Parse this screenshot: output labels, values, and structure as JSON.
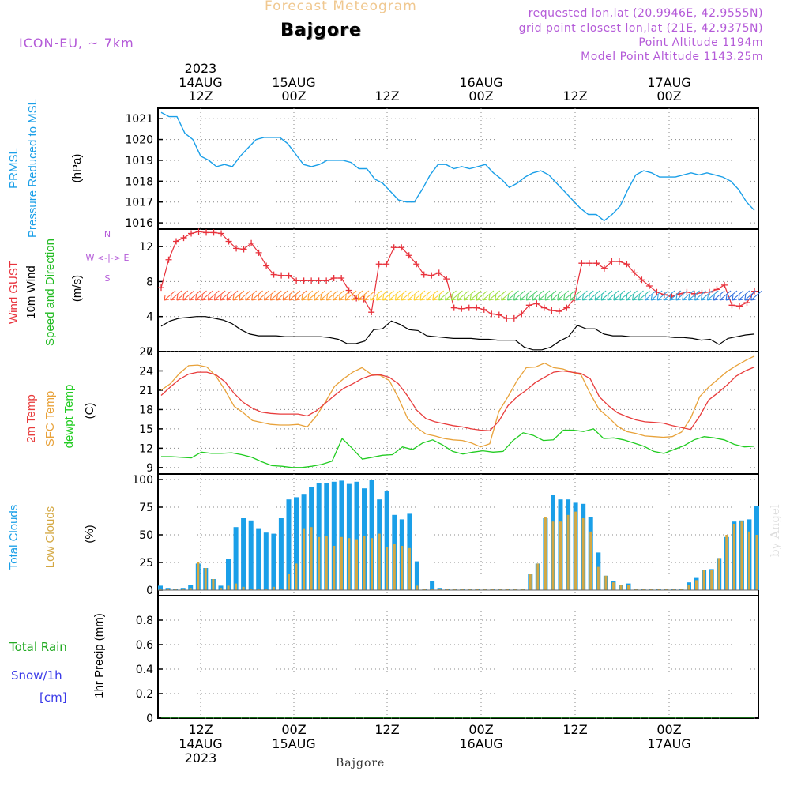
{
  "header": {
    "product_title": "Forecast Meteogram",
    "location": "Bajgore",
    "model": "ICON-EU, ~ 7km",
    "requested_coords": "requested lon,lat (20.9946E, 42.9555N)",
    "grid_coords": "grid point closest lon,lat (21E, 42.9375N)",
    "point_altitude": "Point Altitude 1194m",
    "model_altitude": "Model Point Altitude 1143.25m",
    "footer_location": "Bajgore",
    "watermark": "by Angel"
  },
  "colors": {
    "pressure": "#1a9fe8",
    "gust": "#e8323c",
    "wind": "#000000",
    "wind_label": "#22bb22",
    "temp": "#e83c3c",
    "sfc_temp": "#e8a23a",
    "dewpoint": "#22cc22",
    "total_clouds": "#1a9fe8",
    "low_clouds": "#d4a843",
    "rain": "#22aa22",
    "snow": "#3a3ae8",
    "meta": "#b45ad8",
    "title_faded": "#f0c890"
  },
  "chart_data": [
    {
      "type": "line",
      "panel": "pressure",
      "ylabel_lines": [
        "PRMSL",
        "Pressure Reduced to MSL"
      ],
      "unit": "(hPa)",
      "ylim": [
        1015.7,
        1021.5
      ],
      "yticks": [
        1016,
        1017,
        1018,
        1019,
        1020,
        1021
      ],
      "series": [
        {
          "values": [
            1021.3,
            1021.1,
            1021.1,
            1020.3,
            1020.0,
            1019.2,
            1019.0,
            1018.7,
            1018.8,
            1018.7,
            1019.2,
            1019.6,
            1020.0,
            1020.1,
            1020.1,
            1020.1,
            1019.8,
            1019.3,
            1018.8,
            1018.7,
            1018.8,
            1019.0,
            1019.0,
            1019.0,
            1018.9,
            1018.6,
            1018.6,
            1018.1,
            1017.9,
            1017.5,
            1017.1,
            1017.0,
            1017.0,
            1017.6,
            1018.3,
            1018.8,
            1018.8,
            1018.6,
            1018.7,
            1018.6,
            1018.7,
            1018.8,
            1018.4,
            1018.1,
            1017.7,
            1017.9,
            1018.2,
            1018.4,
            1018.5,
            1018.3,
            1017.9,
            1017.5,
            1017.1,
            1016.7,
            1016.4,
            1016.4,
            1016.1,
            1016.4,
            1016.8,
            1017.6,
            1018.3,
            1018.5,
            1018.4,
            1018.2,
            1018.2,
            1018.2,
            1018.3,
            1018.4,
            1018.3,
            1018.4,
            1018.3,
            1018.2,
            1018.0,
            1017.6,
            1017.0,
            1016.6
          ]
        }
      ]
    },
    {
      "type": "line",
      "panel": "wind",
      "ylabel_lines": [
        "Wind GUST",
        "10m Wind",
        "Speed and Direction"
      ],
      "unit": "(m/s)",
      "compass": [
        "N",
        "W <-|-> E",
        "S"
      ],
      "ylim": [
        0,
        14
      ],
      "yticks": [
        0,
        4,
        8,
        12
      ],
      "series": [
        {
          "name": "Wind GUST",
          "values": [
            7.3,
            10.5,
            12.6,
            13.0,
            13.5,
            13.7,
            13.6,
            13.6,
            13.5,
            12.6,
            11.8,
            11.7,
            12.4,
            11.3,
            9.8,
            8.8,
            8.7,
            8.7,
            8.1,
            8.1,
            8.1,
            8.1,
            8.1,
            8.4,
            8.4,
            7.0,
            6.1,
            6.0,
            4.5,
            10.0,
            10.0,
            11.9,
            11.9,
            11.0,
            10.0,
            8.8,
            8.7,
            9.0,
            8.3,
            5.0,
            4.9,
            5.0,
            5.0,
            4.8,
            4.3,
            4.2,
            3.8,
            3.8,
            4.3,
            5.3,
            5.5,
            5.0,
            4.7,
            4.6,
            5.0,
            6.0,
            10.1,
            10.1,
            10.1,
            9.5,
            10.3,
            10.3,
            10.0,
            9.0,
            8.2,
            7.5,
            6.8,
            6.5,
            6.3,
            6.6,
            6.8,
            6.6,
            6.7,
            6.8,
            7.1,
            7.6,
            5.3,
            5.2,
            5.6,
            6.9
          ]
        },
        {
          "name": "10m Wind",
          "values": [
            2.9,
            3.5,
            3.8,
            3.9,
            4.0,
            4.0,
            3.8,
            3.6,
            3.2,
            2.5,
            2.0,
            1.8,
            1.8,
            1.8,
            1.7,
            1.7,
            1.7,
            1.7,
            1.7,
            1.6,
            1.4,
            0.9,
            0.9,
            1.2,
            2.5,
            2.6,
            3.5,
            3.1,
            2.5,
            2.4,
            1.8,
            1.7,
            1.6,
            1.5,
            1.5,
            1.5,
            1.4,
            1.4,
            1.3,
            1.3,
            1.3,
            0.5,
            0.2,
            0.2,
            0.5,
            1.2,
            1.7,
            3.0,
            2.6,
            2.6,
            2.0,
            1.8,
            1.8,
            1.7,
            1.7,
            1.7,
            1.7,
            1.7,
            1.6,
            1.6,
            1.5,
            1.3,
            1.4,
            0.8,
            1.5,
            1.7,
            1.9,
            2.0
          ]
        }
      ]
    },
    {
      "type": "line",
      "panel": "temperature",
      "ylabel_lines": [
        "2m Temp",
        "SFC Temp",
        "dewpt Temp"
      ],
      "unit": "(C)",
      "ylim": [
        8,
        27
      ],
      "yticks": [
        9,
        12,
        15,
        18,
        21,
        24,
        27
      ],
      "series": [
        {
          "name": "2m Temp",
          "values": [
            20.2,
            21.5,
            22.7,
            23.5,
            23.8,
            23.8,
            23.4,
            22.3,
            20.5,
            19.1,
            18.2,
            17.6,
            17.4,
            17.3,
            17.3,
            17.3,
            17.0,
            17.8,
            19.0,
            20.2,
            21.3,
            22.0,
            22.8,
            23.3,
            23.4,
            23.0,
            22.0,
            20.1,
            17.9,
            16.6,
            16.1,
            15.8,
            15.5,
            15.3,
            15.0,
            14.8,
            14.7,
            16.2,
            18.6,
            20.0,
            21.0,
            22.2,
            23.0,
            23.8,
            24.0,
            23.8,
            23.6,
            22.8,
            20.0,
            18.6,
            17.5,
            16.9,
            16.4,
            16.1,
            16.0,
            15.9,
            15.5,
            15.2,
            14.9,
            17.0,
            19.5,
            20.6,
            21.8,
            23.2,
            24.0,
            24.6
          ]
        },
        {
          "name": "SFC Temp",
          "values": [
            21.0,
            22.0,
            23.6,
            24.8,
            24.9,
            24.6,
            23.2,
            21.0,
            18.5,
            17.5,
            16.3,
            16.0,
            15.7,
            15.6,
            15.6,
            15.7,
            15.3,
            17.0,
            19.2,
            21.6,
            22.8,
            23.8,
            24.5,
            23.5,
            23.3,
            22.5,
            19.8,
            16.6,
            15.2,
            14.2,
            13.9,
            13.5,
            13.3,
            13.2,
            12.8,
            12.2,
            12.7,
            17.7,
            20.0,
            22.5,
            24.5,
            24.6,
            25.2,
            24.5,
            24.3,
            23.8,
            23.4,
            20.5,
            18.0,
            16.8,
            15.4,
            14.6,
            14.3,
            13.9,
            13.8,
            13.7,
            13.8,
            14.5,
            16.6,
            20.0,
            21.5,
            22.7,
            23.9,
            24.8,
            25.6,
            26.3
          ]
        },
        {
          "name": "dewpt Temp",
          "values": [
            10.7,
            10.7,
            10.6,
            10.5,
            11.4,
            11.2,
            11.2,
            11.3,
            11.0,
            10.6,
            9.9,
            9.3,
            9.2,
            9.0,
            9.0,
            9.2,
            9.5,
            10.0,
            13.5,
            12.0,
            10.3,
            10.6,
            10.9,
            11.0,
            12.2,
            11.8,
            12.8,
            13.3,
            12.5,
            11.5,
            11.1,
            11.4,
            11.6,
            11.4,
            11.5,
            13.2,
            14.4,
            14.0,
            13.2,
            13.3,
            14.8,
            14.8,
            14.6,
            15.0,
            13.5,
            13.6,
            13.3,
            12.8,
            12.3,
            11.5,
            11.2,
            11.8,
            12.4,
            13.3,
            13.8,
            13.6,
            13.3,
            12.6,
            12.2,
            12.3
          ]
        }
      ]
    },
    {
      "type": "bar",
      "panel": "clouds",
      "ylabel_lines": [
        "Total Clouds",
        "Low Clouds"
      ],
      "unit": "(%)",
      "ylim": [
        -5,
        105
      ],
      "yticks": [
        0,
        25,
        50,
        75,
        100
      ],
      "series": [
        {
          "name": "Total Clouds",
          "values": [
            4,
            2,
            1,
            2,
            5,
            24,
            20,
            10,
            4,
            28,
            57,
            65,
            63,
            56,
            52,
            51,
            65,
            82,
            84,
            87,
            93,
            97,
            97,
            98,
            99,
            96,
            98,
            92,
            100,
            82,
            90,
            68,
            64,
            69,
            26,
            1,
            8,
            2,
            1,
            0,
            0,
            0,
            0,
            0,
            0,
            0,
            0,
            0,
            0,
            15,
            24,
            65,
            86,
            82,
            82,
            79,
            78,
            66,
            34,
            13,
            8,
            5,
            6,
            1,
            0,
            0,
            0,
            0,
            0,
            1,
            7,
            11,
            18,
            19,
            29,
            48,
            62,
            63,
            64,
            76
          ]
        },
        {
          "name": "Low Clouds",
          "values": [
            1,
            1,
            1,
            1,
            2,
            25,
            20,
            10,
            2,
            4,
            6,
            3,
            1,
            1,
            1,
            3,
            1,
            15,
            24,
            56,
            57,
            48,
            49,
            40,
            48,
            47,
            46,
            49,
            47,
            51,
            39,
            42,
            40,
            38,
            4,
            1,
            0,
            0,
            0,
            0,
            0,
            0,
            0,
            0,
            0,
            0,
            0,
            0,
            0,
            15,
            24,
            66,
            62,
            62,
            68,
            71,
            65,
            53,
            21,
            13,
            7,
            5,
            5,
            0,
            0,
            0,
            0,
            0,
            0,
            0,
            5,
            9,
            18,
            18,
            29,
            50,
            60,
            62,
            53,
            50
          ]
        }
      ]
    },
    {
      "type": "line",
      "panel": "precipitation",
      "left_labels": [
        "Total Rain",
        "Snow/1h",
        "[cm]"
      ],
      "ylabel": "1hr Precip (mm)",
      "ylim": [
        0,
        1.0
      ],
      "yticks": [
        "0",
        "0.2",
        "0.4",
        "0.6",
        "0.8"
      ],
      "series": [
        {
          "name": "Total Rain",
          "values": [
            0,
            0,
            0,
            0,
            0,
            0,
            0,
            0,
            0,
            0,
            0,
            0,
            0,
            0,
            0,
            0,
            0,
            0,
            0,
            0,
            0,
            0,
            0,
            0,
            0,
            0,
            0,
            0,
            0,
            0,
            0,
            0,
            0,
            0,
            0,
            0,
            0,
            0,
            0,
            0
          ]
        }
      ]
    }
  ],
  "time_axis": {
    "top_year": "2023",
    "ticks": [
      {
        "hour": "12Z",
        "date": "14AUG",
        "year": "2023"
      },
      {
        "hour": "00Z",
        "date": "15AUG"
      },
      {
        "hour": "12Z",
        "date": ""
      },
      {
        "hour": "00Z",
        "date": "16AUG"
      },
      {
        "hour": "12Z",
        "date": ""
      },
      {
        "hour": "00Z",
        "date": "17AUG"
      }
    ]
  }
}
